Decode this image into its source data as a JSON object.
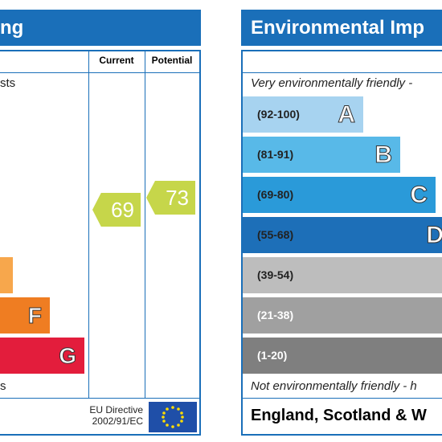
{
  "left_panel": {
    "title": "ng",
    "header": {
      "current": "Current",
      "potential": "Potential"
    },
    "top_note": "sts",
    "bands": [
      {
        "letter": "F"
      },
      {
        "letter": "G"
      }
    ],
    "bottom_note": "s",
    "current": "69",
    "potential": "73",
    "footer": {
      "line1": "EU Directive",
      "line2": "2002/91/EC"
    }
  },
  "right_panel": {
    "title": "Environmental Imp",
    "top_note": "Very environmentally friendly - ",
    "bands": [
      {
        "range": "(92-100)",
        "letter": "A"
      },
      {
        "range": "(81-91)",
        "letter": "B"
      },
      {
        "range": "(69-80)",
        "letter": "C"
      },
      {
        "range": "(55-68)",
        "letter": "D"
      },
      {
        "range": "(39-54)"
      },
      {
        "range": "(21-38)"
      },
      {
        "range": "(1-20)"
      }
    ],
    "bottom_note": "Not environmentally friendly - h",
    "footer": "England, Scotland & W"
  }
}
